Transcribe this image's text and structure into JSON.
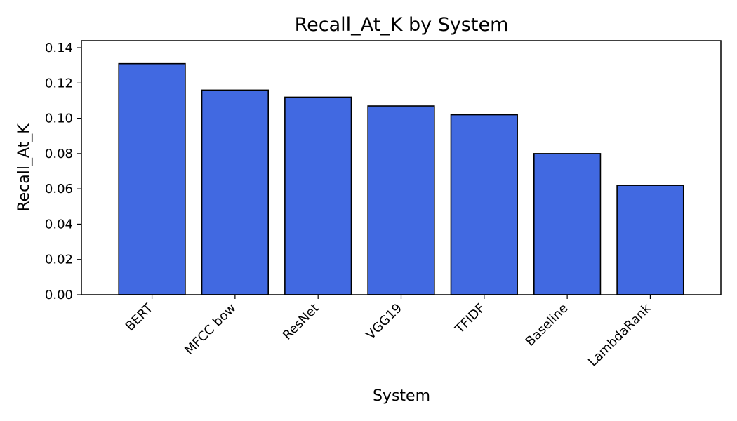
{
  "chart_data": {
    "type": "bar",
    "title": "Recall_At_K by System",
    "xlabel": "System",
    "ylabel": "Recall_At_K",
    "categories": [
      "BERT",
      "MFCC bow",
      "ResNet",
      "VGG19",
      "TFIDF",
      "Baseline",
      "LambdaRank"
    ],
    "values": [
      0.131,
      0.116,
      0.112,
      0.107,
      0.102,
      0.08,
      0.062
    ],
    "ylim": [
      0,
      0.144
    ],
    "yticks": [
      0.0,
      0.02,
      0.04,
      0.06,
      0.08,
      0.1,
      0.12,
      0.14
    ],
    "ytick_labels": [
      "0.00",
      "0.02",
      "0.04",
      "0.06",
      "0.08",
      "0.10",
      "0.12",
      "0.14"
    ],
    "grid": false,
    "legend": "none",
    "bar_color": "#4169e1",
    "edge_color": "#000000"
  }
}
